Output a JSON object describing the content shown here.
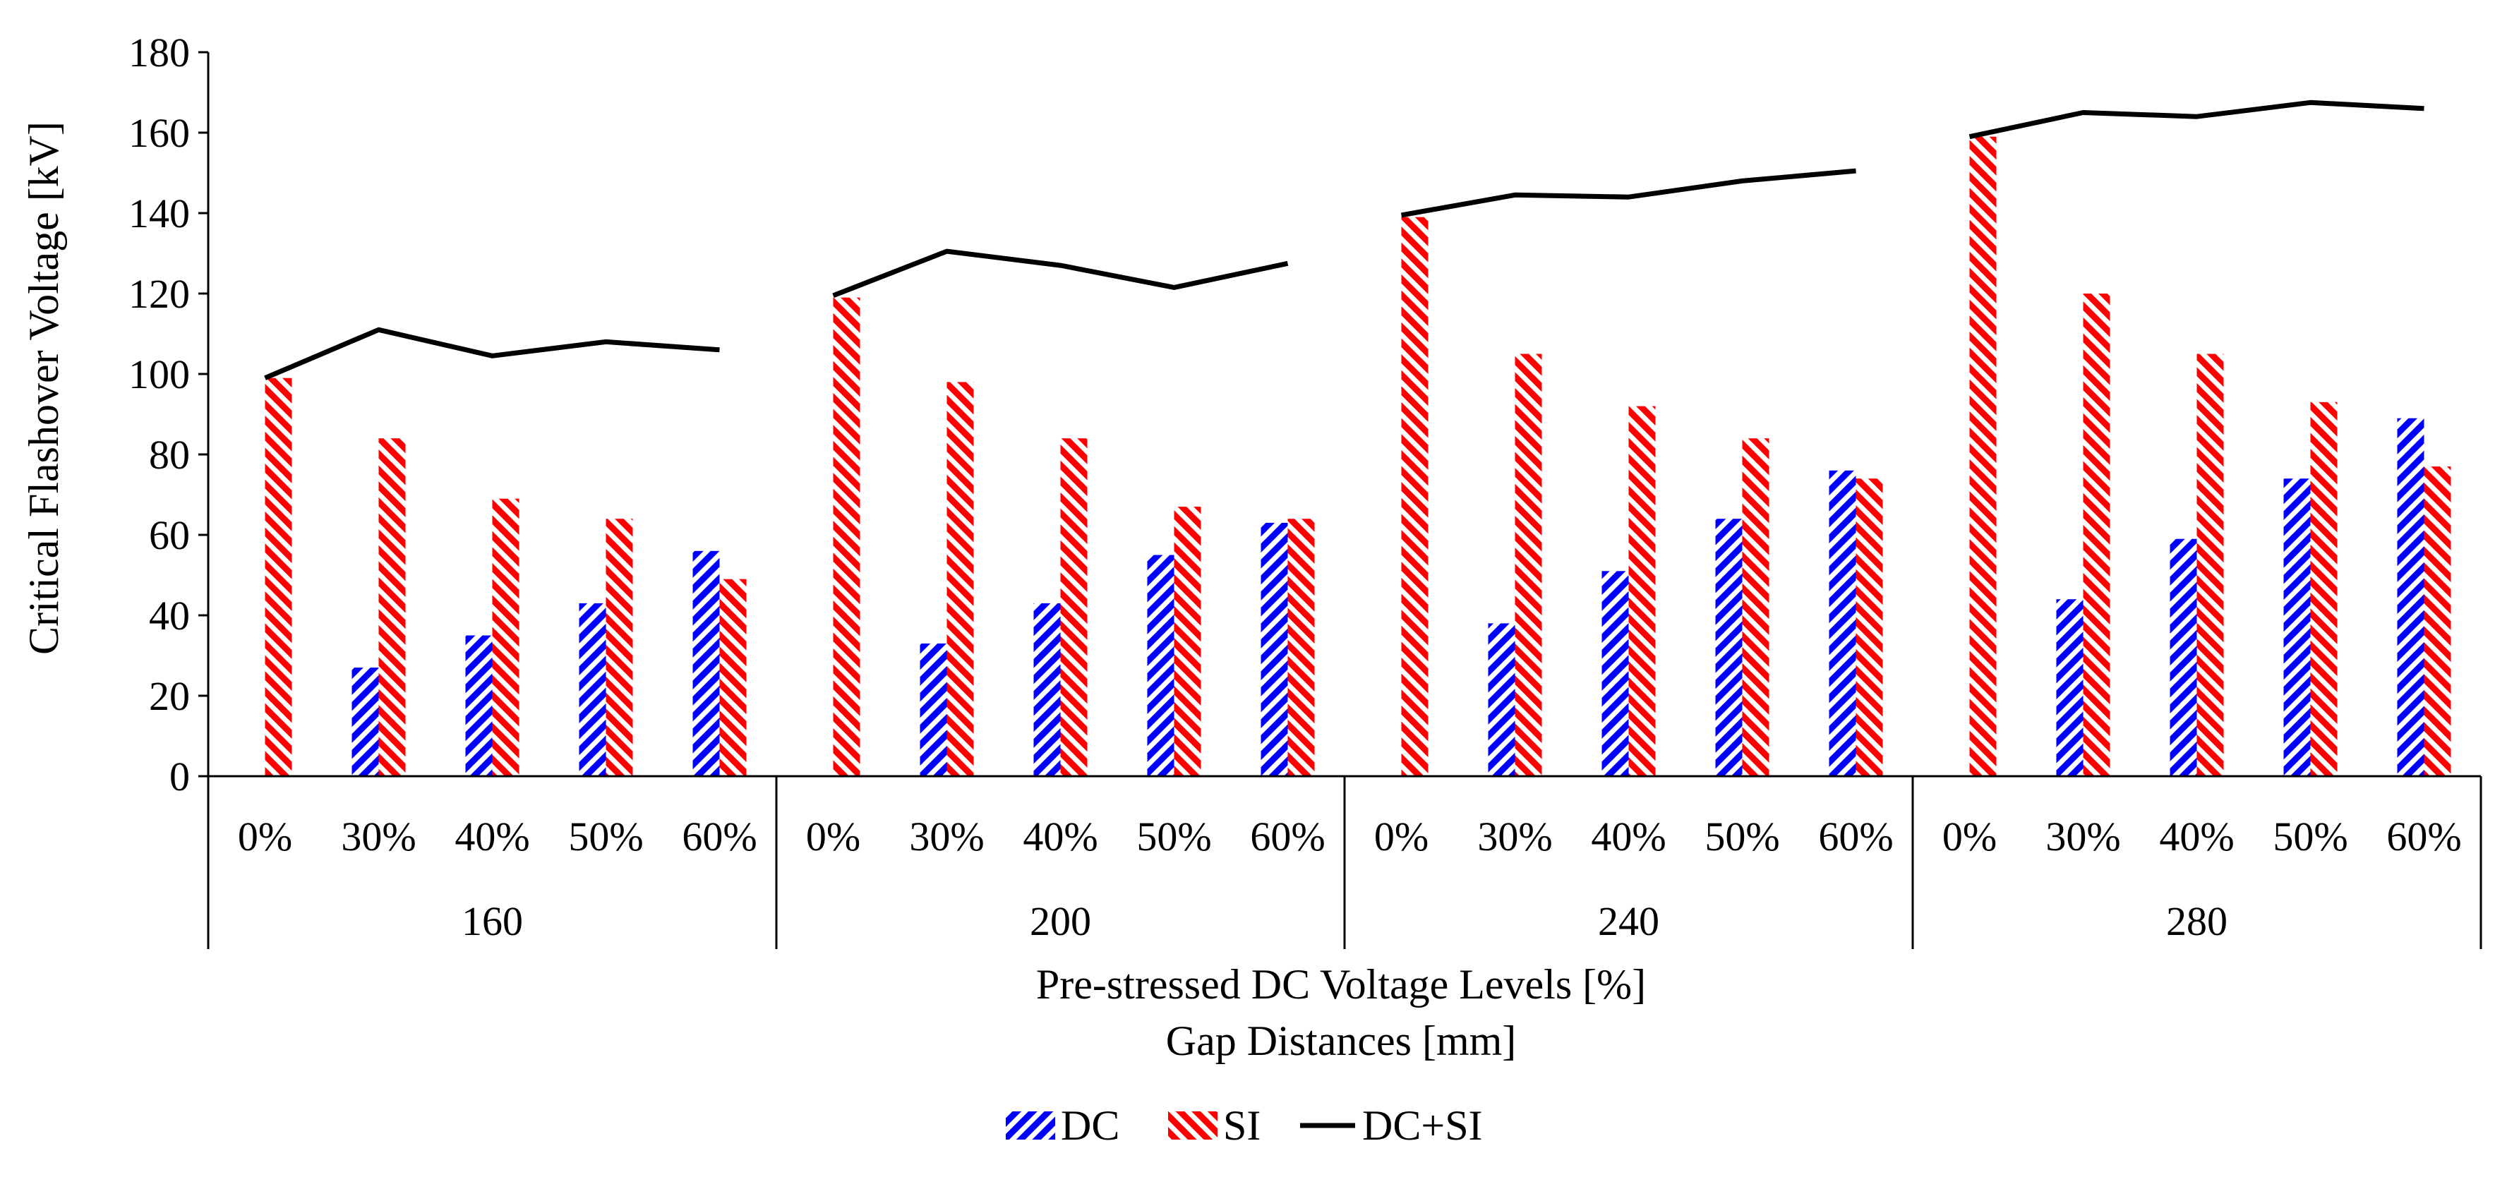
{
  "chart_data": {
    "type": "bar",
    "ylabel": "Critical Flashover Voltage [kV]",
    "xlabel_lines": [
      "Pre-stressed DC Voltage Levels [%]",
      "Gap Distances [mm]"
    ],
    "ylim": [
      0,
      180
    ],
    "yticks": [
      0,
      20,
      40,
      60,
      80,
      100,
      120,
      140,
      160,
      180
    ],
    "groups": [
      "160",
      "200",
      "240",
      "280"
    ],
    "subcategories": [
      "0%",
      "30%",
      "40%",
      "50%",
      "60%"
    ],
    "legend": [
      "DC",
      "SI",
      "DC+SI"
    ],
    "colors": {
      "DC": "#0000ff",
      "SI": "#ff0000",
      "DC+SI": "#000000"
    },
    "series": [
      {
        "name": "DC",
        "type": "bar",
        "values": [
          0,
          27,
          35,
          43,
          56,
          0,
          33,
          43,
          55,
          63,
          0,
          38,
          51,
          64,
          76,
          0,
          44,
          59,
          74,
          89
        ]
      },
      {
        "name": "SI",
        "type": "bar",
        "values": [
          99,
          84,
          69,
          64,
          49,
          119,
          98,
          84,
          67,
          64,
          139,
          105,
          92,
          84,
          74,
          159,
          120,
          105,
          93,
          77
        ]
      },
      {
        "name": "DC+SI",
        "type": "line",
        "values": [
          99,
          111,
          104.5,
          108,
          106,
          119.5,
          130.5,
          127,
          121.5,
          127.5,
          139.5,
          144.5,
          144,
          148,
          150.5,
          159,
          165,
          164,
          167.5,
          166
        ]
      }
    ]
  }
}
